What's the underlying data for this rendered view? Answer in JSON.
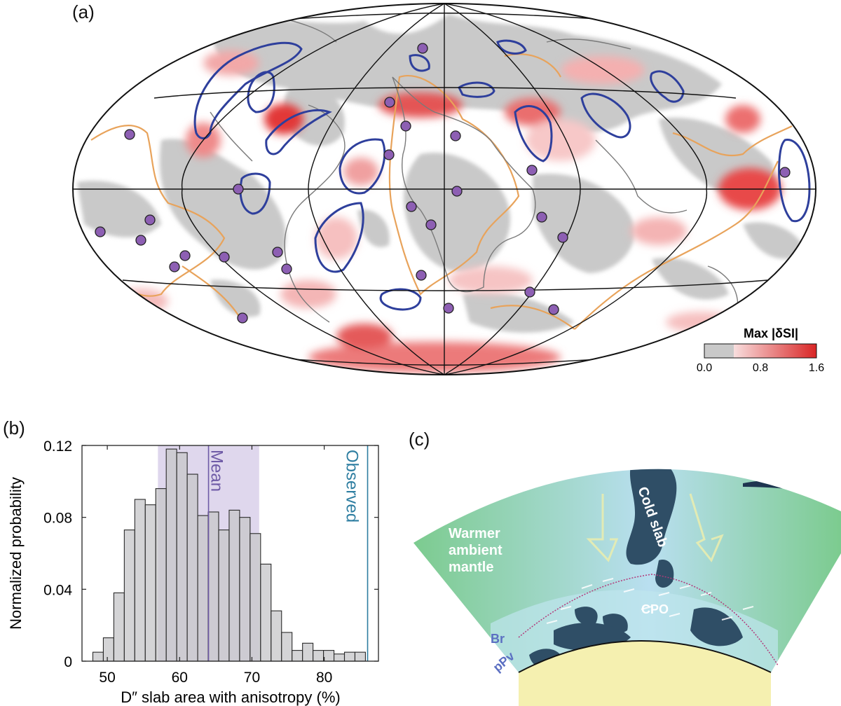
{
  "panels": {
    "a": {
      "label": "(a)"
    },
    "b": {
      "label": "(b)"
    },
    "c": {
      "label": "(c)"
    }
  },
  "map": {
    "projection": "Hammer-Aitoff",
    "colorbar": {
      "title": "Max |δSI|",
      "ticks": [
        "0.0",
        "0.8",
        "1.6"
      ],
      "gray_color": "#c9c9c9",
      "low_color": "#f6d6d6",
      "high_color": "#dc2a2a"
    },
    "colors": {
      "slab_outline": "#2e3f9c",
      "llsvp_outline": "#e8a35b",
      "coast": "#7a7a7a",
      "station": "#8d5fb3"
    }
  },
  "chart_data": {
    "type": "bar",
    "xlabel": "D″ slab area with anisotropy (%)",
    "ylabel": "Normalized probability",
    "xlim": [
      46.5,
      87.5
    ],
    "ylim": [
      0,
      0.12
    ],
    "xticks": [
      "50",
      "60",
      "70",
      "80"
    ],
    "yticks": [
      "0",
      "0.04",
      "0.08",
      "0.12"
    ],
    "bin_width": 1.45,
    "bin_starts": [
      48.0,
      49.45,
      50.9,
      52.35,
      53.8,
      55.25,
      56.7,
      58.15,
      59.6,
      61.05,
      62.5,
      63.95,
      65.4,
      66.85,
      68.3,
      69.75,
      71.2,
      72.65,
      74.1,
      75.55,
      77.0,
      78.45,
      79.9,
      81.35,
      82.8,
      84.25
    ],
    "values": [
      0.005,
      0.013,
      0.038,
      0.073,
      0.09,
      0.087,
      0.096,
      0.118,
      0.116,
      0.104,
      0.081,
      0.083,
      0.073,
      0.084,
      0.08,
      0.071,
      0.054,
      0.028,
      0.016,
      0.006,
      0.01,
      0.006,
      0.006,
      0.004,
      0.005,
      0.005
    ],
    "mean": 64.0,
    "mean_band": [
      57.0,
      71.0
    ],
    "observed": 86.0,
    "annotations": [
      "Mean",
      "Observed"
    ],
    "colors": {
      "bar": "#c8c8ca",
      "band": "#d9d0ea",
      "mean": "#6e5aa6",
      "observed": "#2e7ea1"
    }
  },
  "schematic": {
    "cold_slab": "Cold slab",
    "ambient_line1": "Warmer",
    "ambient_line2": "ambient",
    "ambient_line3": "mantle",
    "cpo": "CPO",
    "br": "Br",
    "ppv": "pPv",
    "colors": {
      "green": "#7ccb8f",
      "light": "#b9dff0",
      "slab": "#2f4e66",
      "core": "#f5f0b0"
    }
  }
}
